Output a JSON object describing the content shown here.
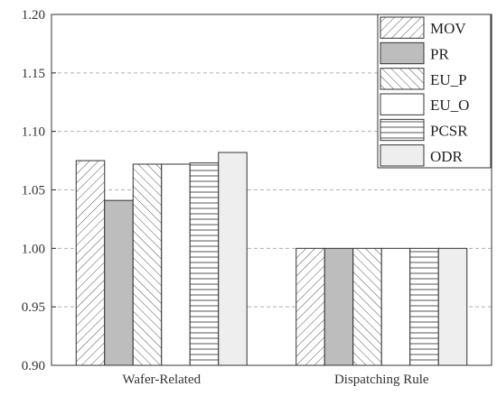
{
  "chart_data": {
    "type": "bar",
    "title": "",
    "xlabel": "",
    "ylabel": "",
    "categories": [
      "Wafer-Related",
      "Dispatching Rule"
    ],
    "ylim": [
      0.9,
      1.2
    ],
    "yticks": [
      "0.90",
      "0.95",
      "1.00",
      "1.05",
      "1.10",
      "1.15",
      "1.20"
    ],
    "grid": true,
    "legend_position": "top-right",
    "series": [
      {
        "name": "MOV",
        "values": [
          1.075,
          1.0
        ],
        "pattern": "diag-right",
        "fill": "#ffffff"
      },
      {
        "name": "PR",
        "values": [
          1.041,
          1.0
        ],
        "pattern": "solid",
        "fill": "#bdbdbd"
      },
      {
        "name": "EU_P",
        "values": [
          1.072,
          1.0
        ],
        "pattern": "diag-left",
        "fill": "#ffffff"
      },
      {
        "name": "EU_O",
        "values": [
          1.072,
          1.0
        ],
        "pattern": "none",
        "fill": "#ffffff"
      },
      {
        "name": "PCSR",
        "values": [
          1.073,
          1.0
        ],
        "pattern": "horizontal",
        "fill": "#ffffff"
      },
      {
        "name": "ODR",
        "values": [
          1.082,
          1.0
        ],
        "pattern": "solid",
        "fill": "#eeeeee"
      }
    ]
  }
}
